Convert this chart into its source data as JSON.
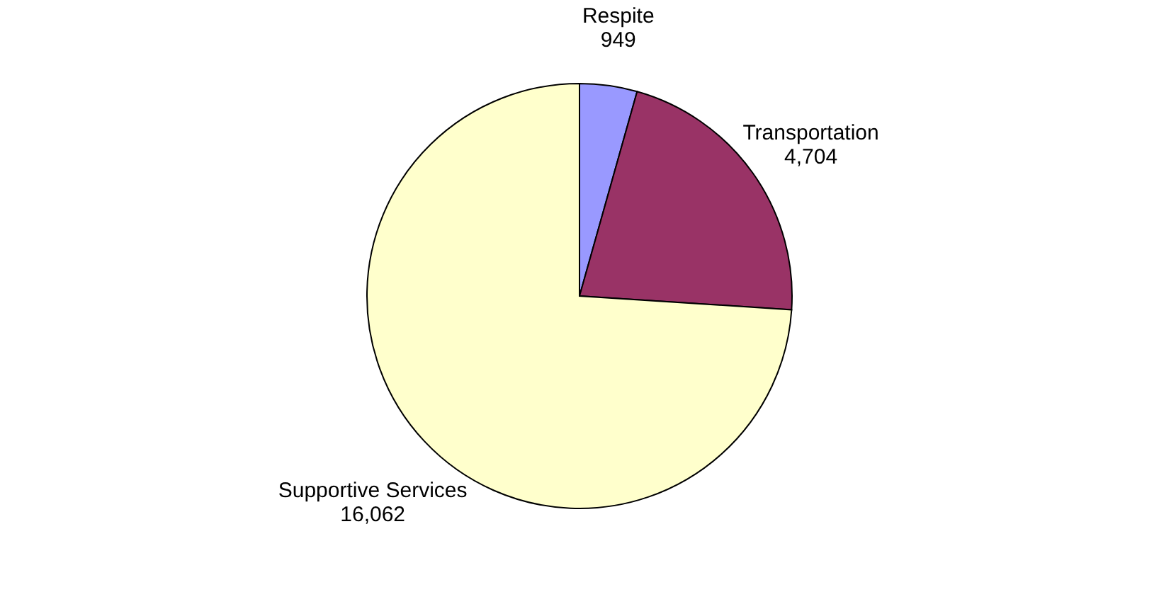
{
  "chart_data": {
    "type": "pie",
    "categories": [
      "Respite",
      "Transportation",
      "Supportive Services"
    ],
    "values": [
      949,
      4704,
      16062
    ],
    "colors": [
      "#9999ff",
      "#993366",
      "#ffffcc"
    ],
    "value_labels": [
      "949",
      "4,704",
      "16,062"
    ]
  }
}
